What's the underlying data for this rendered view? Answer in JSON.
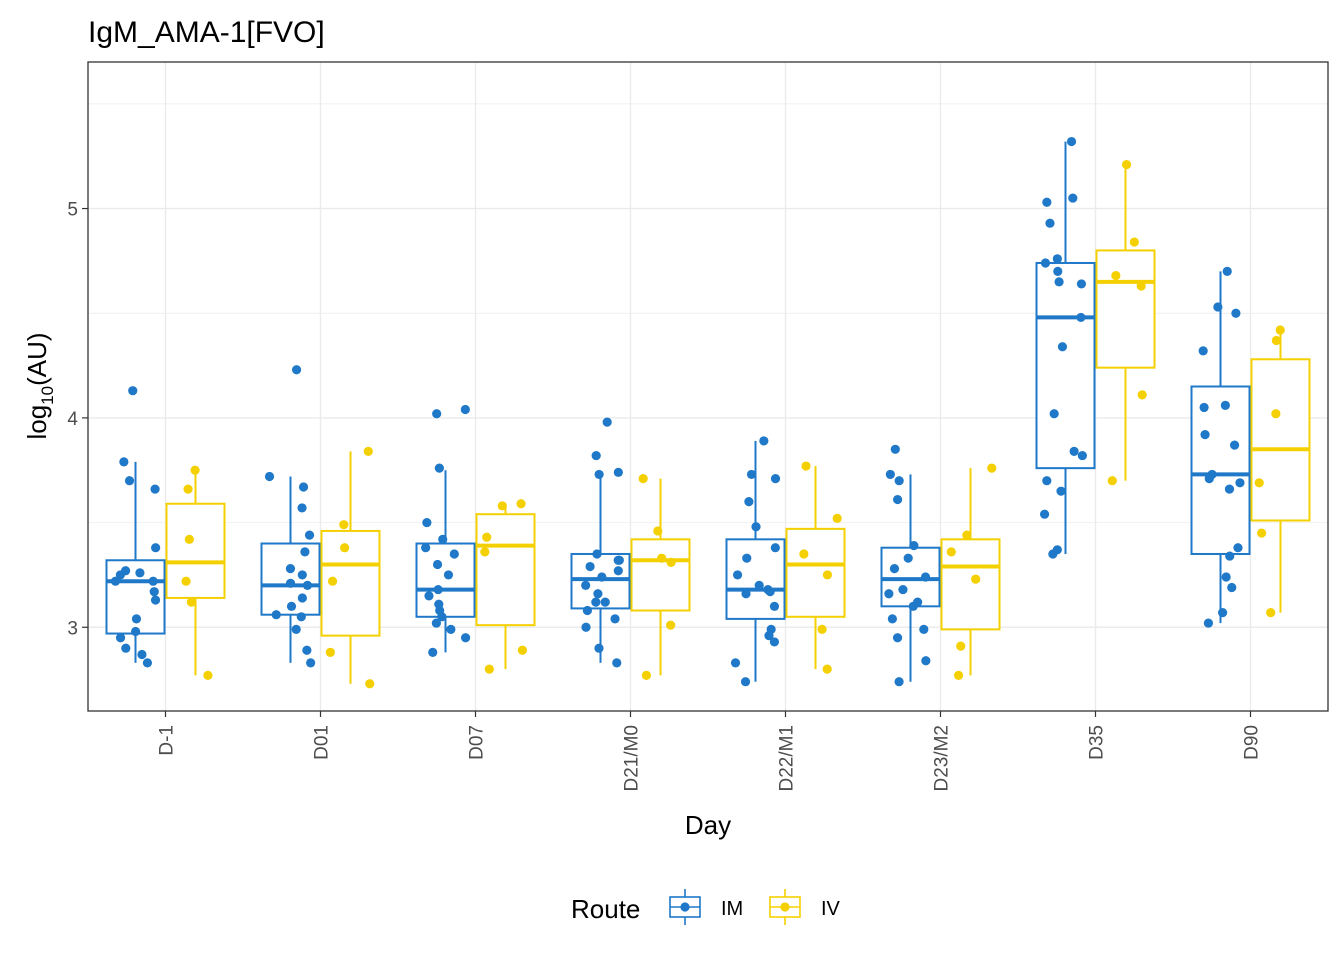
{
  "chart_data": {
    "type": "box",
    "title": "IgM_AMA-1[FVO]",
    "xlabel": "Day",
    "ylabel_base": "log",
    "ylabel_sub": "10",
    "ylabel_tail": "(AU)",
    "ylim": [
      2.6,
      5.7
    ],
    "yticks": [
      3,
      4,
      5
    ],
    "grid": true,
    "legend_position": "bottom",
    "legend_title": "Route",
    "categories": [
      "D-1",
      "D01",
      "D07",
      "D21/M0",
      "D22/M1",
      "D23/M2",
      "D35",
      "D90"
    ],
    "series": [
      {
        "name": "IM",
        "color": "#1f78c8",
        "boxes": [
          {
            "q1": 2.97,
            "median": 3.22,
            "q3": 3.32,
            "whisker_low": 2.83,
            "whisker_high": 3.79
          },
          {
            "q1": 3.06,
            "median": 3.2,
            "q3": 3.4,
            "whisker_low": 2.83,
            "whisker_high": 3.72
          },
          {
            "q1": 3.05,
            "median": 3.18,
            "q3": 3.4,
            "whisker_low": 2.88,
            "whisker_high": 3.75
          },
          {
            "q1": 3.09,
            "median": 3.23,
            "q3": 3.35,
            "whisker_low": 2.83,
            "whisker_high": 3.74
          },
          {
            "q1": 3.04,
            "median": 3.18,
            "q3": 3.42,
            "whisker_low": 2.74,
            "whisker_high": 3.89
          },
          {
            "q1": 3.1,
            "median": 3.23,
            "q3": 3.38,
            "whisker_low": 2.74,
            "whisker_high": 3.73
          },
          {
            "q1": 3.76,
            "median": 4.48,
            "q3": 4.74,
            "whisker_low": 3.35,
            "whisker_high": 5.32
          },
          {
            "q1": 3.35,
            "median": 3.73,
            "q3": 4.15,
            "whisker_low": 3.02,
            "whisker_high": 4.7
          }
        ],
        "points": [
          [
            4.13,
            3.79,
            3.7,
            3.66,
            3.38,
            3.27,
            3.26,
            3.25,
            3.22,
            3.22,
            3.17,
            3.13,
            3.04,
            2.98,
            2.95,
            2.9,
            2.87,
            2.83
          ],
          [
            4.23,
            3.72,
            3.67,
            3.57,
            3.44,
            3.36,
            3.28,
            3.25,
            3.21,
            3.2,
            3.14,
            3.1,
            3.06,
            3.05,
            2.99,
            2.89,
            2.83
          ],
          [
            4.04,
            4.02,
            3.76,
            3.5,
            3.42,
            3.38,
            3.35,
            3.3,
            3.25,
            3.18,
            3.15,
            3.11,
            3.08,
            3.05,
            3.02,
            2.99,
            2.95,
            2.88
          ],
          [
            3.98,
            3.82,
            3.74,
            3.73,
            3.35,
            3.32,
            3.32,
            3.29,
            3.27,
            3.24,
            3.2,
            3.16,
            3.12,
            3.12,
            3.08,
            3.04,
            3.0,
            2.9,
            2.83
          ],
          [
            3.89,
            3.73,
            3.71,
            3.6,
            3.48,
            3.38,
            3.33,
            3.25,
            3.2,
            3.18,
            3.17,
            3.16,
            3.1,
            2.99,
            2.96,
            2.93,
            2.83,
            2.74
          ],
          [
            3.85,
            3.73,
            3.7,
            3.61,
            3.39,
            3.33,
            3.28,
            3.24,
            3.18,
            3.16,
            3.12,
            3.1,
            3.04,
            2.99,
            2.95,
            2.84,
            2.74
          ],
          [
            5.32,
            5.05,
            5.03,
            4.93,
            4.76,
            4.74,
            4.7,
            4.65,
            4.64,
            4.48,
            4.34,
            4.02,
            3.84,
            3.82,
            3.7,
            3.65,
            3.54,
            3.37,
            3.35
          ],
          [
            4.7,
            4.53,
            4.5,
            4.32,
            4.06,
            4.05,
            3.92,
            3.87,
            3.73,
            3.71,
            3.69,
            3.66,
            3.38,
            3.34,
            3.24,
            3.19,
            3.07,
            3.02
          ]
        ]
      },
      {
        "name": "IV",
        "color": "#f5d000",
        "boxes": [
          {
            "q1": 3.14,
            "median": 3.31,
            "q3": 3.59,
            "whisker_low": 2.77,
            "whisker_high": 3.75
          },
          {
            "q1": 2.96,
            "median": 3.3,
            "q3": 3.46,
            "whisker_low": 2.73,
            "whisker_high": 3.84
          },
          {
            "q1": 3.01,
            "median": 3.39,
            "q3": 3.54,
            "whisker_low": 2.8,
            "whisker_high": 3.59
          },
          {
            "q1": 3.08,
            "median": 3.32,
            "q3": 3.42,
            "whisker_low": 2.77,
            "whisker_high": 3.71
          },
          {
            "q1": 3.05,
            "median": 3.3,
            "q3": 3.47,
            "whisker_low": 2.8,
            "whisker_high": 3.77
          },
          {
            "q1": 2.99,
            "median": 3.29,
            "q3": 3.42,
            "whisker_low": 2.77,
            "whisker_high": 3.76
          },
          {
            "q1": 4.24,
            "median": 4.65,
            "q3": 4.8,
            "whisker_low": 3.7,
            "whisker_high": 5.21
          },
          {
            "q1": 3.51,
            "median": 3.85,
            "q3": 4.28,
            "whisker_low": 3.07,
            "whisker_high": 4.42
          }
        ],
        "points": [
          [
            3.75,
            3.66,
            3.42,
            3.22,
            3.12,
            2.77
          ],
          [
            3.84,
            3.49,
            3.38,
            3.22,
            2.88,
            2.73
          ],
          [
            3.59,
            3.58,
            3.43,
            3.36,
            2.89,
            2.8
          ],
          [
            3.71,
            3.46,
            3.33,
            3.31,
            3.01,
            2.77
          ],
          [
            3.77,
            3.52,
            3.35,
            3.25,
            2.99,
            2.8
          ],
          [
            3.76,
            3.44,
            3.36,
            3.23,
            2.91,
            2.77
          ],
          [
            5.21,
            4.84,
            4.68,
            4.63,
            4.11,
            3.7
          ],
          [
            4.42,
            4.37,
            4.02,
            3.69,
            3.45,
            3.07
          ]
        ]
      }
    ]
  }
}
